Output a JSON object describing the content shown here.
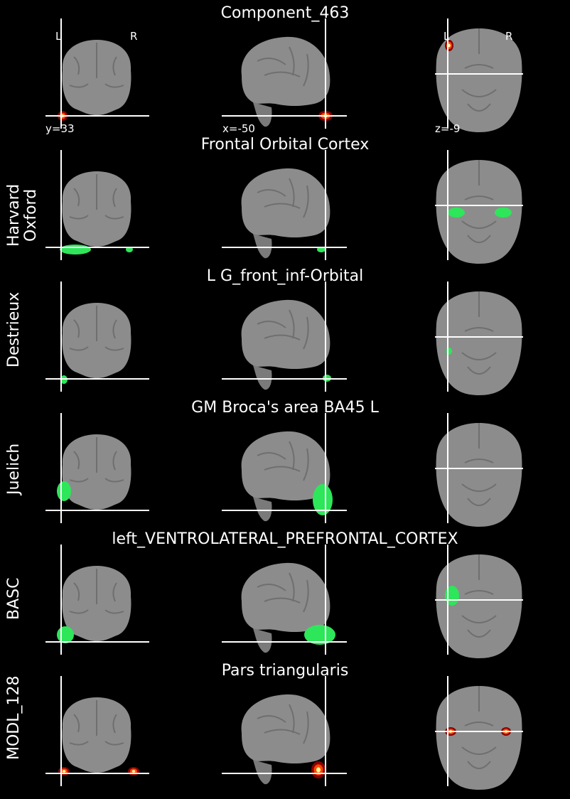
{
  "figure": {
    "rows": [
      {
        "title": "Component_463",
        "label": "",
        "overlay": "heat"
      },
      {
        "title": "Frontal Orbital Cortex",
        "label": "Harvard Oxford",
        "label_lines": [
          "Harvard",
          "Oxford"
        ],
        "overlay": "green"
      },
      {
        "title": "L G_front_inf-Orbital",
        "label": "Destrieux",
        "label_lines": [
          "Destrieux"
        ],
        "overlay": "green"
      },
      {
        "title": "GM Broca's area BA45 L",
        "label": "Juelich",
        "label_lines": [
          "Juelich"
        ],
        "overlay": "green"
      },
      {
        "title": "left_VENTROLATERAL_PREFRONTAL_CORTEX",
        "label": "BASC",
        "label_lines": [
          "BASC"
        ],
        "overlay": "green"
      },
      {
        "title": "Pars triangularis",
        "label": "MODL_128",
        "label_lines": [
          "MODL_128"
        ],
        "overlay": "heat"
      }
    ],
    "orientation": {
      "left": "L",
      "right": "R"
    },
    "coords": {
      "coronal": "y=33",
      "sagittal": "x=-50",
      "axial": "z=-9"
    },
    "colors": {
      "background": "#000000",
      "brain": "#8c8c8c",
      "crosshair": "#ffffff",
      "atlas_green": "#2ee65a",
      "heat_outer": "#8b0000",
      "heat_mid": "#ff4500",
      "heat_core": "#ffff99"
    }
  }
}
